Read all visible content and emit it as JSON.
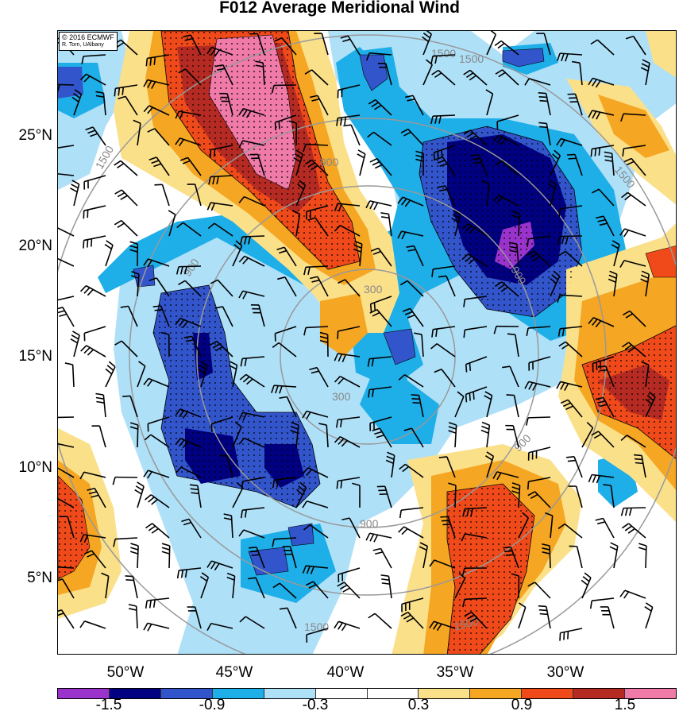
{
  "title": "F012 Average Meridional Wind",
  "credit": {
    "line1": "© 2016 ECMWF",
    "line2": "R. Torn, UAlbany"
  },
  "lat_labels": [
    "25°N",
    "20°N",
    "15°N",
    "10°N",
    "5°N"
  ],
  "lon_labels": [
    "50°W",
    "45°W",
    "40°W",
    "35°W",
    "30°W"
  ],
  "colorbar": {
    "colors": [
      "#9933cc",
      "#000080",
      "#3355cc",
      "#1eaee8",
      "#aee0f8",
      "#ffffff",
      "#ffffff",
      "#fbe08a",
      "#f5a623",
      "#f04a1a",
      "#b52a22",
      "#f07aa8"
    ],
    "labels": [
      "-1.5",
      "-0.9",
      "-0.3",
      "0.3",
      "0.9",
      "1.5"
    ]
  },
  "contour_labels": [
    "1500",
    "1500",
    "1500",
    "1500",
    "1500",
    "1500",
    "900",
    "900",
    "900",
    "900",
    "900",
    "300",
    "300"
  ]
}
